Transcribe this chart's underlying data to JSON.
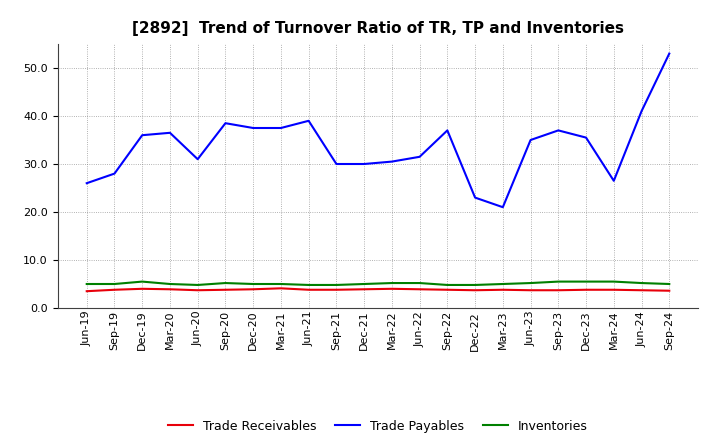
{
  "title": "[2892]  Trend of Turnover Ratio of TR, TP and Inventories",
  "ylim": [
    0.0,
    55.0
  ],
  "yticks": [
    0.0,
    10.0,
    20.0,
    30.0,
    40.0,
    50.0
  ],
  "x_labels": [
    "Jun-19",
    "Sep-19",
    "Dec-19",
    "Mar-20",
    "Jun-20",
    "Sep-20",
    "Dec-20",
    "Mar-21",
    "Jun-21",
    "Sep-21",
    "Dec-21",
    "Mar-22",
    "Jun-22",
    "Sep-22",
    "Dec-22",
    "Mar-23",
    "Jun-23",
    "Sep-23",
    "Dec-23",
    "Mar-24",
    "Jun-24",
    "Sep-24"
  ],
  "trade_receivables": [
    3.5,
    3.8,
    4.0,
    3.9,
    3.7,
    3.8,
    3.9,
    4.1,
    3.8,
    3.8,
    3.9,
    4.0,
    3.9,
    3.8,
    3.7,
    3.8,
    3.7,
    3.7,
    3.8,
    3.8,
    3.7,
    3.6
  ],
  "trade_payables": [
    26.0,
    28.0,
    36.0,
    36.5,
    31.0,
    38.5,
    37.5,
    37.5,
    39.0,
    30.0,
    30.0,
    30.5,
    31.5,
    37.0,
    23.0,
    21.0,
    35.0,
    37.0,
    35.5,
    26.5,
    41.0,
    53.0
  ],
  "inventories": [
    5.0,
    5.0,
    5.5,
    5.0,
    4.8,
    5.2,
    5.0,
    5.0,
    4.8,
    4.8,
    5.0,
    5.2,
    5.2,
    4.8,
    4.8,
    5.0,
    5.2,
    5.5,
    5.5,
    5.5,
    5.2,
    5.0
  ],
  "tr_color": "#e8000a",
  "tp_color": "#0000ff",
  "inv_color": "#008000",
  "background_color": "#ffffff",
  "plot_bg_color": "#ffffff",
  "grid_color": "#808080",
  "title_fontsize": 11,
  "tick_fontsize": 8,
  "legend_fontsize": 9
}
